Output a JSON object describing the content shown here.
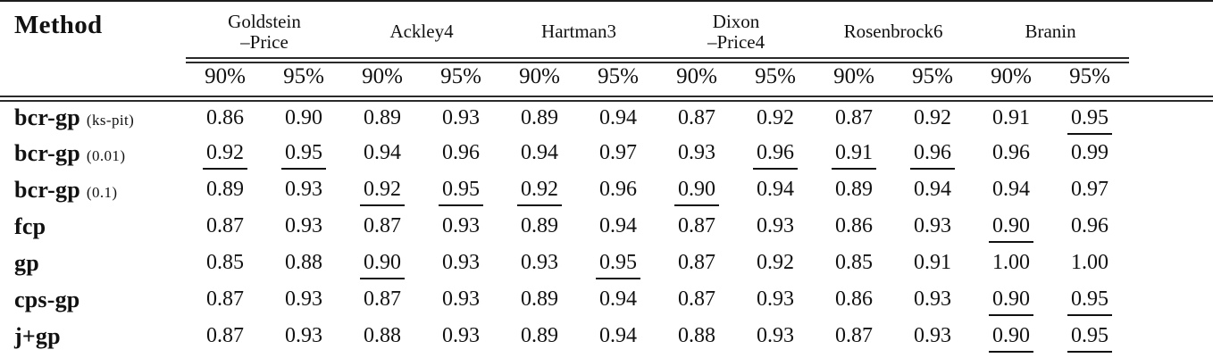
{
  "table": {
    "method_header": "Method",
    "groups": [
      {
        "id": "goldstein-price",
        "line1": "Goldstein",
        "line2": "–Price",
        "quantiles": [
          "90%",
          "95%"
        ]
      },
      {
        "id": "ackley4",
        "line1": "Ackley4",
        "line2": "",
        "quantiles": [
          "90%",
          "95%"
        ]
      },
      {
        "id": "hartman3",
        "line1": "Hartman3",
        "line2": "",
        "quantiles": [
          "90%",
          "95%"
        ]
      },
      {
        "id": "dixon-price4",
        "line1": "Dixon",
        "line2": "–Price4",
        "quantiles": [
          "90%",
          "95%"
        ]
      },
      {
        "id": "rosenbrock6",
        "line1": "Rosenbrock6",
        "line2": "",
        "quantiles": [
          "90%",
          "95%"
        ]
      },
      {
        "id": "branin",
        "line1": "Branin",
        "line2": "",
        "quantiles": [
          "90%",
          "95%"
        ]
      }
    ],
    "rows": [
      {
        "method": "bcr-gp",
        "variant": "(ks-pit)",
        "values": [
          "0.86",
          "0.90",
          "0.89",
          "0.93",
          "0.89",
          "0.94",
          "0.87",
          "0.92",
          "0.87",
          "0.92",
          "0.91",
          "0.95"
        ],
        "underlined": [
          false,
          false,
          false,
          false,
          false,
          false,
          false,
          false,
          false,
          false,
          false,
          true
        ]
      },
      {
        "method": "bcr-gp",
        "variant": "(0.01)",
        "values": [
          "0.92",
          "0.95",
          "0.94",
          "0.96",
          "0.94",
          "0.97",
          "0.93",
          "0.96",
          "0.91",
          "0.96",
          "0.96",
          "0.99"
        ],
        "underlined": [
          true,
          true,
          false,
          false,
          false,
          false,
          false,
          true,
          true,
          true,
          false,
          false
        ]
      },
      {
        "method": "bcr-gp",
        "variant": "(0.1)",
        "values": [
          "0.89",
          "0.93",
          "0.92",
          "0.95",
          "0.92",
          "0.96",
          "0.90",
          "0.94",
          "0.89",
          "0.94",
          "0.94",
          "0.97"
        ],
        "underlined": [
          false,
          false,
          true,
          true,
          true,
          false,
          true,
          false,
          false,
          false,
          false,
          false
        ]
      },
      {
        "method": "fcp",
        "variant": "",
        "values": [
          "0.87",
          "0.93",
          "0.87",
          "0.93",
          "0.89",
          "0.94",
          "0.87",
          "0.93",
          "0.86",
          "0.93",
          "0.90",
          "0.96"
        ],
        "underlined": [
          false,
          false,
          false,
          false,
          false,
          false,
          false,
          false,
          false,
          false,
          true,
          false
        ]
      },
      {
        "method": "gp",
        "variant": "",
        "values": [
          "0.85",
          "0.88",
          "0.90",
          "0.93",
          "0.93",
          "0.95",
          "0.87",
          "0.92",
          "0.85",
          "0.91",
          "1.00",
          "1.00"
        ],
        "underlined": [
          false,
          false,
          true,
          false,
          false,
          true,
          false,
          false,
          false,
          false,
          false,
          false
        ]
      },
      {
        "method": "cps-gp",
        "variant": "",
        "values": [
          "0.87",
          "0.93",
          "0.87",
          "0.93",
          "0.89",
          "0.94",
          "0.87",
          "0.93",
          "0.86",
          "0.93",
          "0.90",
          "0.95"
        ],
        "underlined": [
          false,
          false,
          false,
          false,
          false,
          false,
          false,
          false,
          false,
          false,
          true,
          true
        ]
      },
      {
        "method": "j+gp",
        "variant": "",
        "values": [
          "0.87",
          "0.93",
          "0.88",
          "0.93",
          "0.89",
          "0.94",
          "0.88",
          "0.93",
          "0.87",
          "0.93",
          "0.90",
          "0.95"
        ],
        "underlined": [
          false,
          false,
          false,
          false,
          false,
          false,
          false,
          false,
          false,
          false,
          true,
          true
        ]
      }
    ]
  }
}
